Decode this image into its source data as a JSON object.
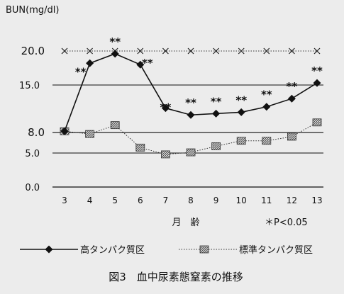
{
  "chart_data": {
    "type": "line",
    "title": "",
    "ylabel": "BUN(mg/dl)",
    "xlabel": "月　齢",
    "ylim": [
      0,
      21.5
    ],
    "yticks": [
      "0.0",
      "5.0",
      "8.0",
      "15.0",
      "20.0"
    ],
    "reference_lines": [
      5.0,
      8.0,
      15.0
    ],
    "x": [
      3,
      4,
      5,
      6,
      7,
      8,
      9,
      10,
      11,
      12,
      13
    ],
    "series": [
      {
        "name": "高タンパク質区",
        "marker": "diamond",
        "line": "solid",
        "values": [
          8.2,
          18.2,
          19.6,
          18.0,
          11.6,
          10.6,
          10.8,
          11.0,
          11.8,
          13.0,
          15.3
        ]
      },
      {
        "name": "標準タンパク質区",
        "marker": "square",
        "line": "dotted",
        "values": [
          8.2,
          7.8,
          9.1,
          5.8,
          4.8,
          5.1,
          6.0,
          6.8,
          6.8,
          7.4,
          9.5
        ]
      }
    ],
    "upper_marker_line": {
      "marker": "x",
      "value": 20.0
    },
    "significance_label": "**",
    "significant_x": [
      4,
      5,
      6,
      7,
      8,
      9,
      10,
      11,
      12,
      13
    ],
    "significance_note": "＊P<0.05",
    "legend_position": "bottom",
    "caption": "図3　血中尿素態窒素の推移"
  }
}
